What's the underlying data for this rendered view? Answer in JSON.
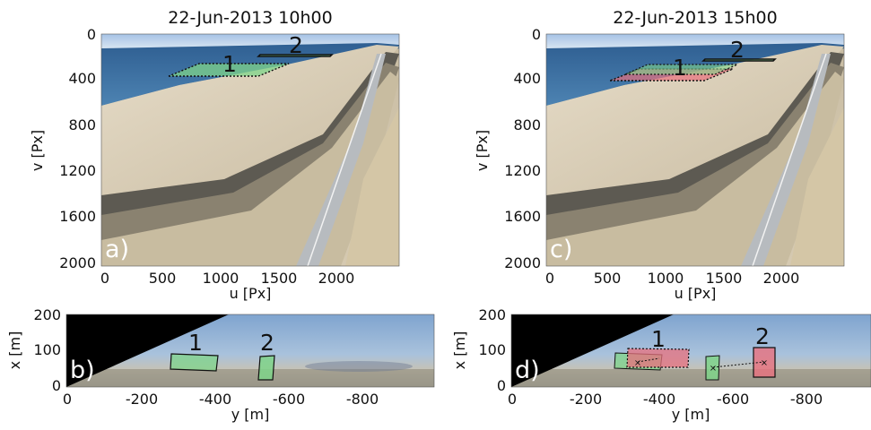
{
  "panels": [
    {
      "id": "a",
      "letter": "a)",
      "title": "22-Jun-2013 10h00",
      "xlabel": "u [Px]",
      "ylabel": "v [Px]",
      "xticks": [
        "0",
        "500",
        "1000",
        "1500",
        "2000"
      ],
      "yticks": [
        "0",
        "400",
        "800",
        "1200",
        "1600",
        "2000"
      ],
      "roi_labels": [
        "1",
        "2"
      ]
    },
    {
      "id": "c",
      "letter": "c)",
      "title": "22-Jun-2013 15h00",
      "xlabel": "u [Px]",
      "ylabel": "v [Px]",
      "xticks": [
        "0",
        "500",
        "1000",
        "1500",
        "2000"
      ],
      "yticks": [
        "0",
        "400",
        "800",
        "1200",
        "1600",
        "2000"
      ],
      "roi_labels": [
        "1",
        "2"
      ]
    },
    {
      "id": "b",
      "letter": "b)",
      "xlabel": "y [m]",
      "ylabel": "x [m]",
      "xticks": [
        "0",
        "-200",
        "-400",
        "-600",
        "-800"
      ],
      "yticks": [
        "0",
        "100",
        "200"
      ],
      "roi_labels": [
        "1",
        "2"
      ]
    },
    {
      "id": "d",
      "letter": "d)",
      "xlabel": "y [m]",
      "ylabel": "x [m]",
      "xticks": [
        "0",
        "-200",
        "-400",
        "-600",
        "-800"
      ],
      "yticks": [
        "0",
        "100",
        "200"
      ],
      "roi_labels": [
        "1",
        "2"
      ]
    }
  ],
  "colors": {
    "roi_green": "#7fd48a",
    "roi_red": "#e8707e",
    "sky": "#a9c6e6",
    "sea": "#3d6f9e",
    "sand": "#d9cdb6",
    "road": "#b9bcbf"
  }
}
